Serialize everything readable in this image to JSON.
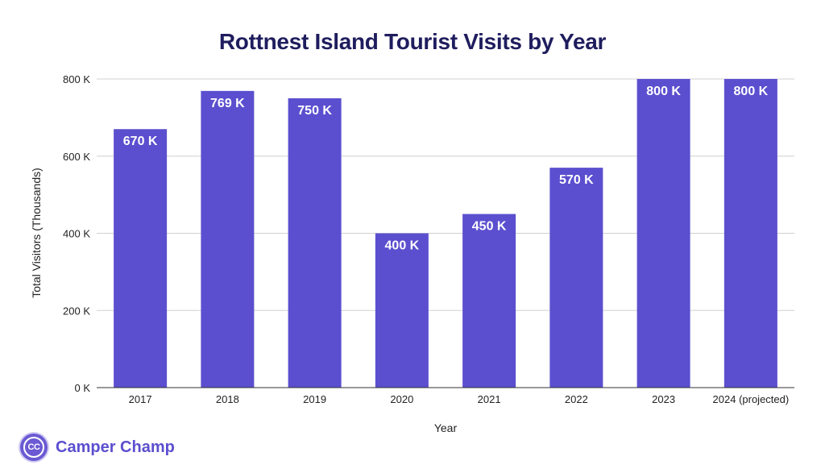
{
  "chart_data": {
    "type": "bar",
    "title": "Rottnest Island Tourist Visits by Year",
    "xlabel": "Year",
    "ylabel": "Total Visitors (Thousands)",
    "categories": [
      "2017",
      "2018",
      "2019",
      "2020",
      "2021",
      "2022",
      "2023",
      "2024 (projected)"
    ],
    "values": [
      670,
      769,
      750,
      400,
      450,
      570,
      800,
      800
    ],
    "data_labels": [
      "670 K",
      "769 K",
      "750 K",
      "400 K",
      "450 K",
      "570 K",
      "800 K",
      "800 K"
    ],
    "ylim": [
      0,
      800
    ],
    "yticks": [
      0,
      200,
      400,
      600,
      800
    ],
    "ytick_labels": [
      "0 K",
      "200 K",
      "400 K",
      "600 K",
      "800 K"
    ],
    "grid": true,
    "legend": "none",
    "bar_color": "#5b4fcf"
  },
  "brand": {
    "logo_text": "CC",
    "name": "Camper Champ",
    "color": "#5b4fcf"
  }
}
